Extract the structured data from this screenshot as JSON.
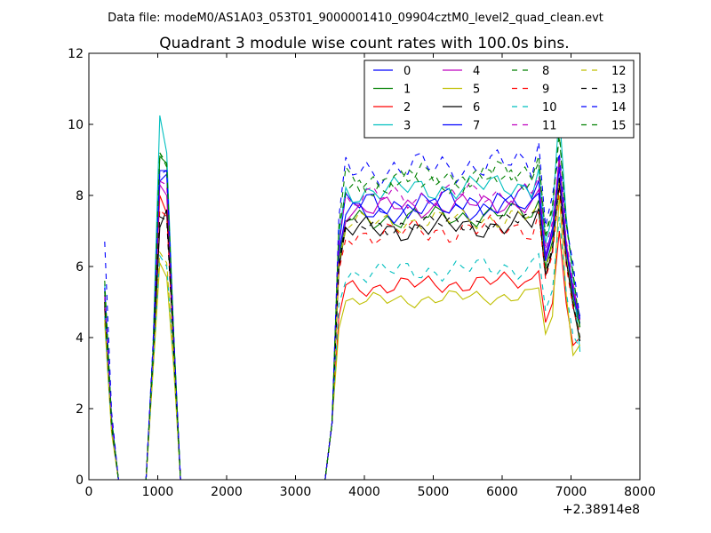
{
  "suptitle": "Data file: modeM0/AS1A03_053T01_9000001410_09904cztM0_level2_quad_clean.evt",
  "colors": {
    "m0": "#0000ff",
    "m1": "#008000",
    "m2": "#ff0000",
    "m3": "#00bfbf",
    "m4": "#bf00bf",
    "m5": "#bfbf00",
    "m6": "#000000",
    "m7": "#0000ff",
    "m8": "#008000",
    "m9": "#ff0000",
    "m10": "#00bfbf",
    "m11": "#bf00bf",
    "m12": "#bfbf00",
    "m13": "#000000",
    "m14": "#0000ff",
    "m15": "#008000"
  },
  "chart_data": {
    "type": "line",
    "title": "Quadrant 3 module wise count rates with 100.0s bins.",
    "xlabel": "",
    "ylabel": "",
    "x_offset_label": "+2.38914e8",
    "xlim": [
      0,
      8000
    ],
    "ylim": [
      0,
      12
    ],
    "x_ticks": [
      0,
      1000,
      2000,
      3000,
      4000,
      5000,
      6000,
      7000,
      8000
    ],
    "x_tick_labels": [
      "0",
      "1000",
      "2000",
      "3000",
      "4000",
      "5000",
      "6000",
      "7000",
      "8000"
    ],
    "y_ticks": [
      0,
      2,
      4,
      6,
      8,
      10,
      12
    ],
    "y_tick_labels": [
      "0",
      "2",
      "4",
      "6",
      "8",
      "10",
      "12"
    ],
    "legend_position": "top-right",
    "legend_columns": 4,
    "x_segments": [
      [
        230,
        330,
        430,
        530,
        630,
        730,
        830,
        930
      ],
      [
        1030,
        1130,
        1230,
        1330,
        1430,
        1530,
        1630,
        1730,
        1830,
        1930,
        2030,
        2130,
        2230,
        2330,
        2430,
        2530,
        2630,
        2730,
        2830,
        2930,
        3030,
        3130,
        3230,
        3330,
        3430,
        3530
      ],
      [
        3630,
        3730,
        3830,
        3930,
        4030,
        4130,
        4230,
        4330,
        4430,
        4530,
        4630,
        4730,
        4830,
        4930,
        5030,
        5130,
        5230,
        5330,
        5430,
        5530,
        5630,
        5730,
        5830,
        5930,
        6030,
        6130,
        6230,
        6330,
        6430,
        6530,
        6630,
        6730,
        6830,
        6930,
        7030,
        7130
      ]
    ],
    "series": [
      {
        "name": "0",
        "style": "solid",
        "seg0": [
          5.3,
          1.6,
          0,
          0,
          0,
          0,
          0,
          3.5
        ],
        "peak": [
          8.4,
          8.6,
          4.0
        ],
        "level": 7.7,
        "var": 0.45,
        "spike": 8.8,
        "end": 4.6
      },
      {
        "name": "1",
        "style": "solid",
        "seg0": [
          5.1,
          1.5,
          0,
          0,
          0,
          0,
          0,
          3.4
        ],
        "peak": [
          9.1,
          8.9,
          4.0
        ],
        "level": 7.3,
        "var": 0.35,
        "spike": 8.9,
        "end": 4.3
      },
      {
        "name": "2",
        "style": "solid",
        "seg0": [
          4.8,
          1.5,
          0,
          0,
          0,
          0,
          0,
          3.3
        ],
        "peak": [
          8.0,
          7.5,
          3.8
        ],
        "level": 5.4,
        "var": 0.3,
        "spike": 7.0,
        "end": 4.0
      },
      {
        "name": "3",
        "style": "solid",
        "seg0": [
          5.5,
          1.7,
          0,
          0,
          0,
          0,
          0,
          3.6
        ],
        "peak": [
          10.25,
          9.2,
          4.2
        ],
        "level": 8.1,
        "var": 0.4,
        "spike": 10.4,
        "end": 3.6
      },
      {
        "name": "4",
        "style": "solid",
        "seg0": [
          5.2,
          1.6,
          0,
          0,
          0,
          0,
          0,
          3.5
        ],
        "peak": [
          8.3,
          8.0,
          4.0
        ],
        "level": 7.6,
        "var": 0.35,
        "spike": 9.1,
        "end": 4.5
      },
      {
        "name": "5",
        "style": "solid",
        "seg0": [
          4.4,
          1.3,
          0,
          0,
          0,
          0,
          0,
          3.0
        ],
        "peak": [
          6.1,
          5.7,
          3.2
        ],
        "level": 5.0,
        "var": 0.25,
        "spike": 8.0,
        "end": 3.8
      },
      {
        "name": "6",
        "style": "solid",
        "seg0": [
          4.9,
          1.5,
          0,
          0,
          0,
          0,
          0,
          3.3
        ],
        "peak": [
          7.1,
          7.6,
          3.8
        ],
        "level": 7.0,
        "var": 0.4,
        "spike": 8.5,
        "end": 3.9
      },
      {
        "name": "7",
        "style": "solid",
        "seg0": [
          5.4,
          1.7,
          0,
          0,
          0,
          0,
          0,
          3.6
        ],
        "peak": [
          8.7,
          8.7,
          4.1
        ],
        "level": 7.5,
        "var": 0.35,
        "spike": 8.8,
        "end": 4.4
      },
      {
        "name": "8",
        "style": "dashed",
        "seg0": [
          5.6,
          1.7,
          0,
          0,
          0,
          0,
          0,
          3.6
        ],
        "peak": [
          9.2,
          8.9,
          4.1
        ],
        "level": 8.4,
        "var": 0.45,
        "spike": 9.8,
        "end": 4.2
      },
      {
        "name": "9",
        "style": "dashed",
        "seg0": [
          5.0,
          1.5,
          0,
          0,
          0,
          0,
          0,
          3.4
        ],
        "peak": [
          7.6,
          7.4,
          3.8
        ],
        "level": 6.9,
        "var": 0.4,
        "spike": 8.2,
        "end": 4.1
      },
      {
        "name": "10",
        "style": "dashed",
        "seg0": [
          4.6,
          1.4,
          0,
          0,
          0,
          0,
          0,
          3.1
        ],
        "peak": [
          6.3,
          6.0,
          3.4
        ],
        "level": 5.8,
        "var": 0.35,
        "spike": 7.4,
        "end": 3.7
      },
      {
        "name": "11",
        "style": "dashed",
        "seg0": [
          5.2,
          1.6,
          0,
          0,
          0,
          0,
          0,
          3.5
        ],
        "peak": [
          8.4,
          8.3,
          4.0
        ],
        "level": 7.9,
        "var": 0.4,
        "spike": 9.0,
        "end": 4.4
      },
      {
        "name": "12",
        "style": "dashed",
        "seg0": [
          4.5,
          1.4,
          0,
          0,
          0,
          0,
          0,
          3.1
        ],
        "peak": [
          6.4,
          6.1,
          3.4
        ],
        "level": 7.2,
        "var": 0.35,
        "spike": 8.4,
        "end": 3.9
      },
      {
        "name": "13",
        "style": "dashed",
        "seg0": [
          5.0,
          1.5,
          0,
          0,
          0,
          0,
          0,
          3.4
        ],
        "peak": [
          7.4,
          7.3,
          3.7
        ],
        "level": 7.1,
        "var": 0.3,
        "spike": 8.3,
        "end": 4.0
      },
      {
        "name": "14",
        "style": "dashed",
        "seg0": [
          6.7,
          1.9,
          0,
          0,
          0,
          0,
          0,
          3.8
        ],
        "peak": [
          8.6,
          8.7,
          4.2
        ],
        "level": 8.7,
        "var": 0.5,
        "spike": 9.2,
        "end": 4.5
      },
      {
        "name": "15",
        "style": "dashed",
        "seg0": [
          5.3,
          1.6,
          0,
          0,
          0,
          0,
          0,
          3.5
        ],
        "peak": [
          9.2,
          8.8,
          4.1
        ],
        "level": 8.3,
        "var": 0.4,
        "spike": 9.7,
        "end": 4.3
      }
    ]
  }
}
